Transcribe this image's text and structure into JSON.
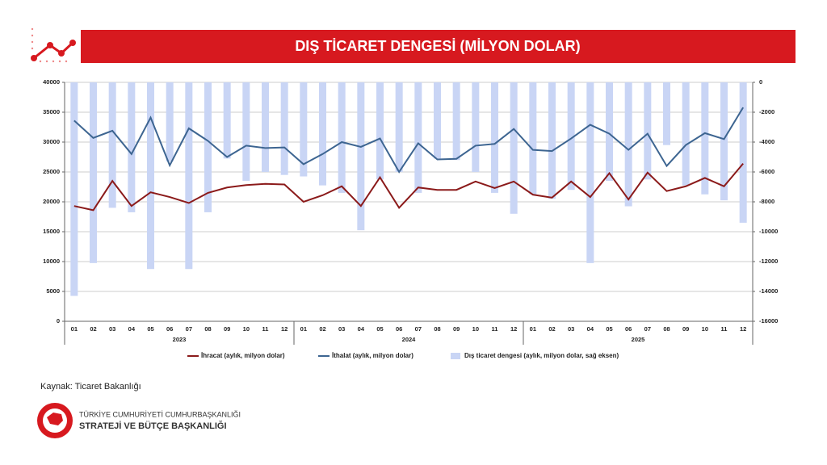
{
  "chart_data": {
    "type": "combo",
    "title": "DIŞ TİCARET DENGESİ (MİLYON DOLAR)",
    "categories": [
      "01",
      "02",
      "03",
      "04",
      "05",
      "06",
      "07",
      "08",
      "09",
      "10",
      "11",
      "12",
      "01",
      "02",
      "03",
      "04",
      "05",
      "06",
      "07",
      "08",
      "09",
      "10",
      "11",
      "12",
      "01",
      "02",
      "03",
      "04",
      "05",
      "06",
      "07",
      "08",
      "09",
      "10",
      "11",
      "12"
    ],
    "year_groups": [
      "2023",
      "2024",
      "2025"
    ],
    "series": [
      {
        "name": "İhracat (aylık, milyon dolar)",
        "type": "line",
        "color": "#8b1a1a",
        "values": [
          19300,
          18600,
          23500,
          19300,
          21600,
          20800,
          19800,
          21500,
          22400,
          22800,
          23000,
          22900,
          20000,
          21100,
          22600,
          19300,
          24100,
          19000,
          22400,
          22000,
          22000,
          23400,
          22300,
          23400,
          21200,
          20700,
          23400,
          20800,
          24800,
          20400,
          24900,
          21800,
          22600,
          24000,
          22600,
          26400
        ]
      },
      {
        "name": "İthalat (aylık, milyon dolar)",
        "type": "line",
        "color": "#3d6591",
        "values": [
          33600,
          30700,
          31900,
          28000,
          34100,
          26100,
          32300,
          30200,
          27500,
          29400,
          29000,
          29100,
          26300,
          28000,
          30000,
          29200,
          30600,
          25000,
          29800,
          27100,
          27200,
          29400,
          29700,
          32200,
          28700,
          28500,
          30600,
          32900,
          31400,
          28700,
          31400,
          26000,
          29500,
          31500,
          30500,
          35800
        ]
      },
      {
        "name": "Dış ticaret dengesi (aylık, milyon dolar, sağ eksen)",
        "type": "bar",
        "axis": "y2",
        "color": "#c9d5f5",
        "values": [
          -14300,
          -12100,
          -8400,
          -8700,
          -12500,
          -5300,
          -12500,
          -8700,
          -5100,
          -6600,
          -6000,
          -6200,
          -6300,
          -6900,
          -7400,
          -9900,
          -6500,
          -6000,
          -7400,
          -5100,
          -5200,
          -6000,
          -7400,
          -8800,
          -7500,
          -7800,
          -7200,
          -12100,
          -6600,
          -8300,
          -6500,
          -4200,
          -6900,
          -7500,
          -7900,
          -9400
        ]
      }
    ],
    "ylim": [
      0,
      40000
    ],
    "yticks": [
      0,
      5000,
      10000,
      15000,
      20000,
      25000,
      30000,
      35000,
      40000
    ],
    "y2lim": [
      -16000,
      0
    ],
    "y2ticks": [
      0,
      -2000,
      -4000,
      -6000,
      -8000,
      -10000,
      -12000,
      -14000,
      -16000
    ],
    "grid": true,
    "legend": "bottom"
  },
  "source": "Kaynak: Ticaret Bakanlığı",
  "logo": {
    "line1": "TÜRKİYE CUMHURİYETİ CUMHURBAŞKANLIĞI",
    "line2": "STRATEJİ VE BÜTÇE BAŞKANLIĞI"
  }
}
